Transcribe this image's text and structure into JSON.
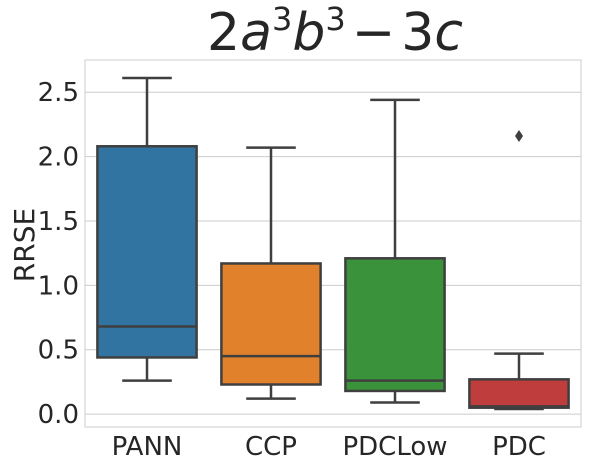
{
  "chart_data": {
    "type": "box",
    "title_parts": {
      "a_coef": "2",
      "a": "a",
      "a_exp": "3",
      "b": "b",
      "b_exp": "3",
      "op": "−",
      "c_coef": "3",
      "c": "c"
    },
    "ylabel": "RRSE",
    "ylim": [
      -0.1,
      2.75
    ],
    "yticks": [
      0.0,
      0.5,
      1.0,
      1.5,
      2.0,
      2.5
    ],
    "ytick_labels": [
      "0.0",
      "0.5",
      "1.0",
      "1.5",
      "2.0",
      "2.5"
    ],
    "grid": "horizontal",
    "categories": [
      "PANN",
      "CCP",
      "PDCLow",
      "PDC"
    ],
    "boxes": [
      {
        "name": "PANN",
        "color": "#3274a1",
        "whisker_low": 0.26,
        "q1": 0.44,
        "median": 0.68,
        "q3": 2.08,
        "whisker_high": 2.61,
        "fliers": []
      },
      {
        "name": "CCP",
        "color": "#e1812c",
        "whisker_low": 0.12,
        "q1": 0.23,
        "median": 0.45,
        "q3": 1.17,
        "whisker_high": 2.07,
        "fliers": []
      },
      {
        "name": "PDCLow",
        "color": "#3a923a",
        "whisker_low": 0.09,
        "q1": 0.18,
        "median": 0.26,
        "q3": 1.21,
        "whisker_high": 2.44,
        "fliers": []
      },
      {
        "name": "PDC",
        "color": "#c03d3e",
        "whisker_low": 0.04,
        "q1": 0.05,
        "median": 0.06,
        "q3": 0.27,
        "whisker_high": 0.47,
        "fliers": [
          2.16
        ]
      }
    ]
  }
}
